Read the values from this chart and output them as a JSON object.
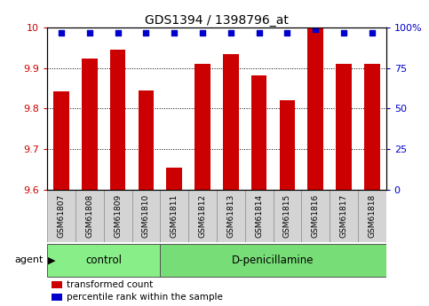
{
  "title": "GDS1394 / 1398796_at",
  "categories": [
    "GSM61807",
    "GSM61808",
    "GSM61809",
    "GSM61810",
    "GSM61811",
    "GSM61812",
    "GSM61813",
    "GSM61814",
    "GSM61815",
    "GSM61816",
    "GSM61817",
    "GSM61818"
  ],
  "bar_values": [
    9.843,
    9.923,
    9.945,
    9.845,
    9.655,
    9.91,
    9.935,
    9.883,
    9.82,
    10.0,
    9.91,
    9.91
  ],
  "percentile_values": [
    97,
    97,
    97,
    97,
    97,
    97,
    97,
    97,
    97,
    99,
    97,
    97
  ],
  "bar_color": "#cc0000",
  "dot_color": "#0000cc",
  "ymin": 9.6,
  "ymax": 10.0,
  "yticks": [
    9.6,
    9.7,
    9.8,
    9.9,
    10.0
  ],
  "ytick_labels": [
    "9.6",
    "9.7",
    "9.8",
    "9.9",
    "10"
  ],
  "right_yticks": [
    0,
    25,
    50,
    75,
    100
  ],
  "right_yticklabels": [
    "0",
    "25",
    "50",
    "75",
    "100%"
  ],
  "groups": [
    {
      "label": "control",
      "start": 0,
      "end": 4,
      "color": "#88ee88"
    },
    {
      "label": "D-penicillamine",
      "start": 4,
      "end": 12,
      "color": "#77dd77"
    }
  ],
  "agent_label": "agent",
  "legend_items": [
    {
      "color": "#cc0000",
      "label": "transformed count"
    },
    {
      "color": "#0000cc",
      "label": "percentile rank within the sample"
    }
  ],
  "background_color": "#ffffff",
  "plot_bg_color": "#ffffff",
  "tick_box_color": "#d4d4d4",
  "bar_width": 0.55
}
